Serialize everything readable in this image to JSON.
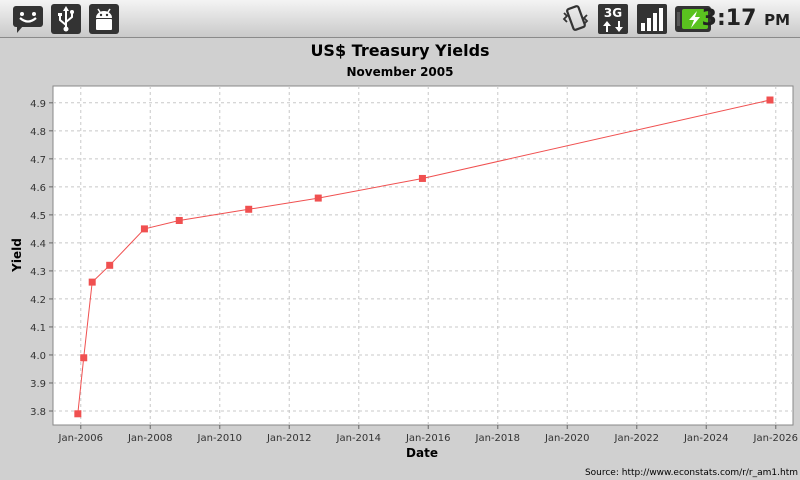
{
  "statusbar": {
    "icons_left": [
      "chat-notification-icon",
      "usb-icon",
      "android-debug-icon"
    ],
    "icons_right": [
      "vibrate-icon",
      "network-3g-icon",
      "signal-strength-icon",
      "battery-charging-icon"
    ],
    "time": "3:17",
    "ampm": "PM",
    "network_label": "3G"
  },
  "chart_data": {
    "type": "line",
    "title": "US$ Treasury Yields",
    "subtitle": "November 2005",
    "xlabel": "Date",
    "ylabel": "Yield",
    "source": "Source: http://www.econstats.com/r/r_am1.htm",
    "x_ticks": [
      "Jan-2006",
      "Jan-2008",
      "Jan-2010",
      "Jan-2012",
      "Jan-2014",
      "Jan-2016",
      "Jan-2018",
      "Jan-2020",
      "Jan-2022",
      "Jan-2024",
      "Jan-2026"
    ],
    "y_ticks": [
      "3.8",
      "3.9",
      "4.0",
      "4.1",
      "4.2",
      "4.3",
      "4.4",
      "4.5",
      "4.6",
      "4.7",
      "4.8",
      "4.9"
    ],
    "xlim": [
      "2005-03-15",
      "2026-07-01"
    ],
    "ylim": [
      3.75,
      4.96
    ],
    "grid": true,
    "line_color": "#f05050",
    "marker_color": "#f05050",
    "series": [
      {
        "x": [
          "2005-12-01",
          "2006-02-01",
          "2006-05-01",
          "2006-11-01",
          "2007-11-01",
          "2008-11-01",
          "2010-11-01",
          "2012-11-01",
          "2015-11-01",
          "2025-11-01"
        ],
        "y": [
          3.79,
          3.99,
          4.26,
          4.32,
          4.45,
          4.48,
          4.52,
          4.56,
          4.63,
          4.91
        ]
      }
    ]
  }
}
